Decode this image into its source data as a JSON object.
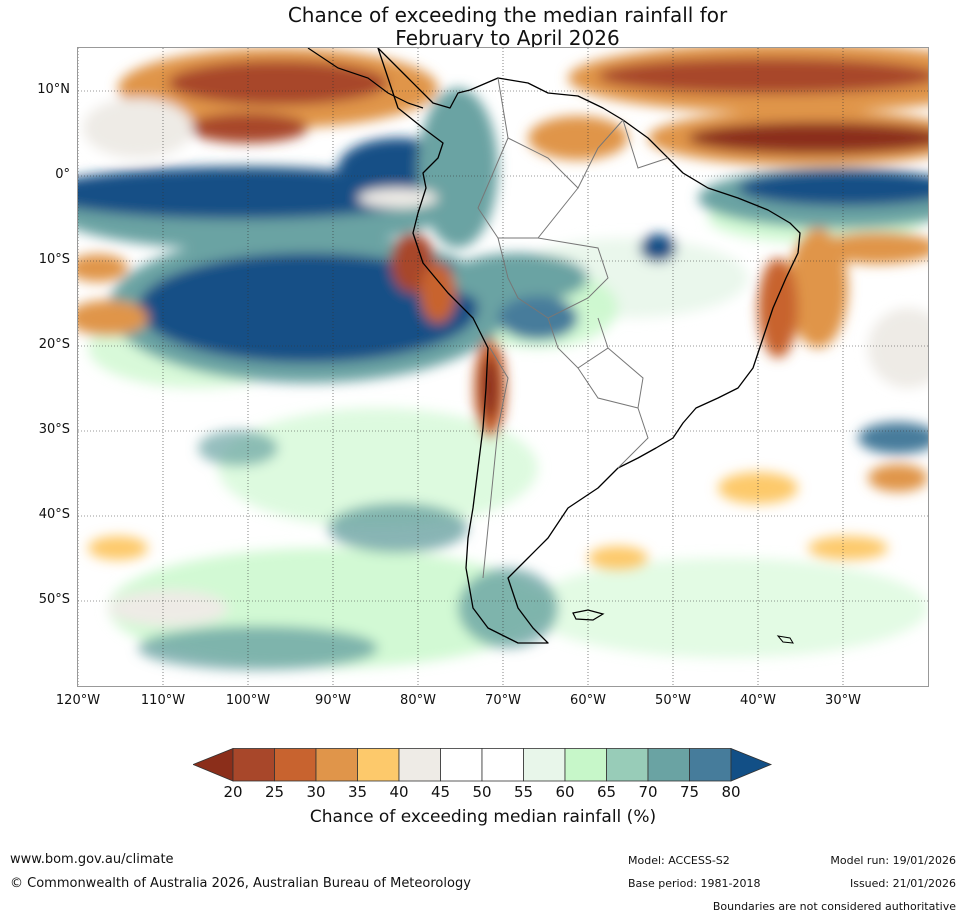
{
  "title": {
    "line1": "Chance of exceeding the median rainfall for",
    "line2": "February to April 2026"
  },
  "map": {
    "lat_labels": [
      "10°N",
      "0°",
      "10°S",
      "20°S",
      "30°S",
      "40°S",
      "50°S"
    ],
    "lon_labels": [
      "120°W",
      "110°W",
      "100°W",
      "90°W",
      "80°W",
      "70°W",
      "60°W",
      "50°W",
      "40°W",
      "30°W"
    ]
  },
  "legend": {
    "ticks": [
      "20",
      "25",
      "30",
      "35",
      "40",
      "45",
      "50",
      "55",
      "60",
      "65",
      "70",
      "75",
      "80"
    ],
    "colors": [
      "#8b2e1a",
      "#a8472a",
      "#c8632f",
      "#e0954a",
      "#fdc96b",
      "#eeebe6",
      "#ffffff",
      "#ffffff",
      "#e8f6ea",
      "#c7f7c9",
      "#98ccb8",
      "#6aa3a3",
      "#467c9b",
      "#124f86"
    ],
    "label": "Chance of exceeding median rainfall (%)"
  },
  "footer": {
    "website": "www.bom.gov.au/climate",
    "copyright": "© Commonwealth of Australia 2026, Australian Bureau of Meteorology",
    "model": "Model: ACCESS-S2",
    "base_period": "Base period: 1981-2018",
    "model_run": "Model run: 19/01/2026",
    "issued": "Issued: 21/01/2026",
    "disclaimer": "Boundaries are not considered authoritative"
  }
}
